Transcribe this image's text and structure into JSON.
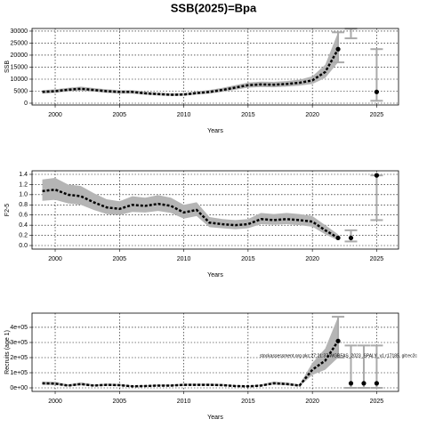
{
  "title": "SSB(2025)=Bpa",
  "chart_data": [
    {
      "type": "line",
      "ylabel": "SSB",
      "xlabel": "Years",
      "grid": true,
      "x": [
        1999,
        2000,
        2001,
        2002,
        2003,
        2004,
        2005,
        2006,
        2007,
        2008,
        2009,
        2010,
        2011,
        2012,
        2013,
        2014,
        2015,
        2016,
        2017,
        2018,
        2019,
        2020,
        2021,
        2022
      ],
      "values": [
        4700,
        5000,
        5600,
        6000,
        5500,
        5000,
        4700,
        4700,
        4100,
        3800,
        3500,
        3600,
        4200,
        4700,
        5500,
        6500,
        7500,
        7800,
        7700,
        8000,
        8500,
        9500,
        13000,
        22500
      ],
      "lower": [
        4000,
        4300,
        4900,
        5200,
        4800,
        4300,
        4000,
        4000,
        3500,
        3200,
        3000,
        3100,
        3600,
        4000,
        4700,
        5600,
        6500,
        6700,
        6600,
        6900,
        7300,
        8000,
        10500,
        17000
      ],
      "upper": [
        5400,
        5800,
        6400,
        6900,
        6300,
        5800,
        5400,
        5400,
        4800,
        4400,
        4100,
        4200,
        4900,
        5500,
        6400,
        7500,
        8600,
        9000,
        8900,
        9200,
        9800,
        11200,
        16000,
        29500
      ],
      "points": {
        "x": [
          2025
        ],
        "values": [
          4700
        ]
      },
      "intervals": {
        "x": [
          2022,
          2023,
          2025
        ],
        "lower": [
          17000,
          27000,
          1000
        ],
        "upper": [
          29500,
          31000,
          22500
        ]
      },
      "xlim": [
        1998.2,
        2026.7
      ],
      "xticks": [
        2000,
        2005,
        2010,
        2015,
        2020,
        2025
      ],
      "ylim": [
        -740,
        31100
      ],
      "yticks": [
        0,
        5000,
        10000,
        15000,
        20000,
        25000,
        30000
      ]
    },
    {
      "type": "line",
      "ylabel": "F2-5",
      "xlabel": "Years",
      "grid": true,
      "x": [
        1999,
        2000,
        2001,
        2002,
        2003,
        2004,
        2005,
        2006,
        2007,
        2008,
        2009,
        2010,
        2011,
        2012,
        2013,
        2014,
        2015,
        2016,
        2017,
        2018,
        2019,
        2020,
        2021,
        2022
      ],
      "values": [
        1.07,
        1.1,
        1.0,
        0.97,
        0.85,
        0.75,
        0.72,
        0.8,
        0.78,
        0.82,
        0.78,
        0.65,
        0.7,
        0.45,
        0.42,
        0.4,
        0.42,
        0.52,
        0.5,
        0.52,
        0.5,
        0.47,
        0.3,
        0.15
      ],
      "lower": [
        0.88,
        0.9,
        0.83,
        0.8,
        0.7,
        0.62,
        0.6,
        0.66,
        0.65,
        0.68,
        0.64,
        0.53,
        0.58,
        0.36,
        0.34,
        0.32,
        0.34,
        0.42,
        0.41,
        0.42,
        0.4,
        0.37,
        0.22,
        0.1
      ],
      "upper": [
        1.3,
        1.33,
        1.2,
        1.17,
        1.03,
        0.91,
        0.87,
        0.97,
        0.94,
        0.99,
        0.94,
        0.8,
        0.85,
        0.56,
        0.52,
        0.5,
        0.52,
        0.64,
        0.62,
        0.64,
        0.62,
        0.58,
        0.4,
        0.22
      ],
      "points": {
        "x": [
          2023,
          2025
        ],
        "values": [
          0.15,
          1.38
        ]
      },
      "intervals": {
        "x": [
          2023,
          2025
        ],
        "lower": [
          0.08,
          0.5
        ],
        "upper": [
          0.3,
          1.38
        ]
      },
      "xlim": [
        1998.2,
        2026.7
      ],
      "xticks": [
        2000,
        2005,
        2010,
        2015,
        2020,
        2025
      ],
      "ylim": [
        -0.07,
        1.47
      ],
      "yticks": [
        {
          "value": 0,
          "label": "0.0"
        },
        0.2,
        0.4,
        0.6,
        0.8,
        {
          "value": 1,
          "label": "1.0"
        },
        1.2,
        1.4
      ]
    },
    {
      "type": "line",
      "ylabel": "Recruits (age 1)",
      "xlabel": "Years",
      "grid": true,
      "annotation": "stockassessment.org pkc:27:21:37 WGBFAS_2023_SPALY_v1 r17185, git:ec2c",
      "x": [
        1999,
        2000,
        2001,
        2002,
        2003,
        2004,
        2005,
        2006,
        2007,
        2008,
        2009,
        2010,
        2011,
        2012,
        2013,
        2014,
        2015,
        2016,
        2017,
        2018,
        2019,
        2020,
        2021,
        2022
      ],
      "values": [
        30000,
        28000,
        15000,
        25000,
        15000,
        20000,
        18000,
        10000,
        12000,
        15000,
        15000,
        20000,
        20000,
        20000,
        18000,
        12000,
        10000,
        15000,
        30000,
        25000,
        15000,
        120000,
        180000,
        310000
      ],
      "lower": [
        20000,
        19000,
        10000,
        17000,
        10000,
        14000,
        12000,
        6000,
        8000,
        10000,
        10000,
        14000,
        14000,
        14000,
        12000,
        8000,
        6000,
        10000,
        21000,
        17000,
        10000,
        85000,
        120000,
        200000
      ],
      "upper": [
        42000,
        40000,
        22000,
        36000,
        22000,
        28000,
        26000,
        15000,
        18000,
        22000,
        22000,
        28000,
        28000,
        28000,
        26000,
        18000,
        15000,
        22000,
        42000,
        36000,
        22000,
        165000,
        260000,
        470000
      ],
      "points": {
        "x": [
          2023,
          2024,
          2025
        ],
        "values": [
          30000,
          30000,
          30000
        ]
      },
      "intervals": {
        "x": [
          2022,
          2023,
          2024,
          2025
        ],
        "lower": [
          200000,
          0,
          0,
          0
        ],
        "upper": [
          470000,
          280000,
          280000,
          280000
        ]
      },
      "xlim": [
        1998.2,
        2026.7
      ],
      "xticks": [
        2000,
        2005,
        2010,
        2015,
        2020,
        2025
      ],
      "ylim": [
        -23500,
        494000
      ],
      "yticks": [
        {
          "value": 0,
          "label": "0e+00"
        },
        {
          "value": 100000,
          "label": "1e+05"
        },
        {
          "value": 200000,
          "label": "2e+05"
        },
        {
          "value": 300000,
          "label": "3e+05"
        },
        {
          "value": 400000,
          "label": "4e+05"
        }
      ]
    }
  ]
}
